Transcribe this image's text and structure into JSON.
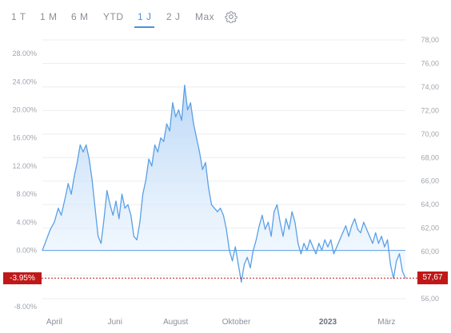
{
  "tabs": [
    {
      "label": "1 T",
      "active": false
    },
    {
      "label": "1 M",
      "active": false
    },
    {
      "label": "6 M",
      "active": false
    },
    {
      "label": "YTD",
      "active": false
    },
    {
      "label": "1 J",
      "active": true
    },
    {
      "label": "2 J",
      "active": false
    },
    {
      "label": "Max",
      "active": false
    }
  ],
  "settings_icon": "gear-icon",
  "colors": {
    "accent": "#4a90d9",
    "line": "#5aa0e6",
    "fill_top": "#b7d6f7",
    "fill_bottom": "#f2f8fe",
    "current_marker": "#c01818",
    "grid": "#eceef1"
  },
  "chart_data": {
    "type": "area",
    "left_axis": {
      "unit": "percent",
      "range": [
        -8,
        28
      ],
      "ticks": [
        "28.00%",
        "24.00%",
        "20.00%",
        "16.00%",
        "12.00%",
        "8.00%",
        "4.00%",
        "0.00%",
        "-8.00%"
      ]
    },
    "right_axis": {
      "range": [
        56,
        78
      ],
      "ticks": [
        "78,00",
        "76,00",
        "74,00",
        "72,00",
        "70,00",
        "68,00",
        "66,00",
        "64,00",
        "62,00",
        "60,00",
        "58,00",
        "56,00"
      ]
    },
    "x_axis": {
      "range": [
        "2022-03-20",
        "2023-03-20"
      ],
      "labels": [
        {
          "date": "2022-04-01",
          "text": "April",
          "bold": false
        },
        {
          "date": "2022-06-01",
          "text": "Juni",
          "bold": false
        },
        {
          "date": "2022-08-01",
          "text": "August",
          "bold": false
        },
        {
          "date": "2022-10-01",
          "text": "Oktober",
          "bold": false
        },
        {
          "date": "2023-01-01",
          "text": "2023",
          "bold": true
        },
        {
          "date": "2023-03-01",
          "text": "März",
          "bold": false
        }
      ]
    },
    "current": {
      "percent_label": "-3.95%",
      "price_label": "57,67",
      "percent": -3.95
    },
    "grid": "horizontal",
    "series": [
      {
        "values": [
          {
            "x": "2022-03-20",
            "y": 0.0
          },
          {
            "x": "2022-03-24",
            "y": 1.5
          },
          {
            "x": "2022-03-28",
            "y": 3.0
          },
          {
            "x": "2022-04-01",
            "y": 4.0
          },
          {
            "x": "2022-04-05",
            "y": 6.0
          },
          {
            "x": "2022-04-08",
            "y": 5.0
          },
          {
            "x": "2022-04-12",
            "y": 7.5
          },
          {
            "x": "2022-04-15",
            "y": 9.5
          },
          {
            "x": "2022-04-18",
            "y": 8.0
          },
          {
            "x": "2022-04-21",
            "y": 10.5
          },
          {
            "x": "2022-04-24",
            "y": 12.5
          },
          {
            "x": "2022-04-27",
            "y": 15.0
          },
          {
            "x": "2022-04-30",
            "y": 14.0
          },
          {
            "x": "2022-05-03",
            "y": 15.0
          },
          {
            "x": "2022-05-06",
            "y": 13.0
          },
          {
            "x": "2022-05-09",
            "y": 10.0
          },
          {
            "x": "2022-05-12",
            "y": 6.0
          },
          {
            "x": "2022-05-15",
            "y": 2.0
          },
          {
            "x": "2022-05-18",
            "y": 1.0
          },
          {
            "x": "2022-05-21",
            "y": 4.5
          },
          {
            "x": "2022-05-24",
            "y": 8.5
          },
          {
            "x": "2022-05-27",
            "y": 6.5
          },
          {
            "x": "2022-05-30",
            "y": 5.0
          },
          {
            "x": "2022-06-02",
            "y": 7.0
          },
          {
            "x": "2022-06-05",
            "y": 4.5
          },
          {
            "x": "2022-06-08",
            "y": 8.0
          },
          {
            "x": "2022-06-11",
            "y": 6.0
          },
          {
            "x": "2022-06-14",
            "y": 6.5
          },
          {
            "x": "2022-06-17",
            "y": 5.0
          },
          {
            "x": "2022-06-20",
            "y": 2.0
          },
          {
            "x": "2022-06-23",
            "y": 1.5
          },
          {
            "x": "2022-06-26",
            "y": 4.0
          },
          {
            "x": "2022-06-29",
            "y": 8.0
          },
          {
            "x": "2022-07-02",
            "y": 10.0
          },
          {
            "x": "2022-07-05",
            "y": 13.0
          },
          {
            "x": "2022-07-08",
            "y": 12.0
          },
          {
            "x": "2022-07-11",
            "y": 15.0
          },
          {
            "x": "2022-07-14",
            "y": 14.0
          },
          {
            "x": "2022-07-17",
            "y": 16.0
          },
          {
            "x": "2022-07-20",
            "y": 15.5
          },
          {
            "x": "2022-07-23",
            "y": 18.0
          },
          {
            "x": "2022-07-26",
            "y": 17.0
          },
          {
            "x": "2022-07-29",
            "y": 21.0
          },
          {
            "x": "2022-08-01",
            "y": 19.0
          },
          {
            "x": "2022-08-04",
            "y": 20.0
          },
          {
            "x": "2022-08-07",
            "y": 18.5
          },
          {
            "x": "2022-08-10",
            "y": 23.5
          },
          {
            "x": "2022-08-13",
            "y": 20.0
          },
          {
            "x": "2022-08-16",
            "y": 21.0
          },
          {
            "x": "2022-08-19",
            "y": 18.0
          },
          {
            "x": "2022-08-22",
            "y": 16.0
          },
          {
            "x": "2022-08-25",
            "y": 14.0
          },
          {
            "x": "2022-08-28",
            "y": 11.5
          },
          {
            "x": "2022-08-31",
            "y": 12.5
          },
          {
            "x": "2022-09-03",
            "y": 9.0
          },
          {
            "x": "2022-09-06",
            "y": 6.5
          },
          {
            "x": "2022-09-09",
            "y": 6.0
          },
          {
            "x": "2022-09-12",
            "y": 5.5
          },
          {
            "x": "2022-09-15",
            "y": 6.0
          },
          {
            "x": "2022-09-18",
            "y": 5.0
          },
          {
            "x": "2022-09-21",
            "y": 3.0
          },
          {
            "x": "2022-09-24",
            "y": 0.0
          },
          {
            "x": "2022-09-27",
            "y": -1.5
          },
          {
            "x": "2022-09-30",
            "y": 0.5
          },
          {
            "x": "2022-10-03",
            "y": -2.0
          },
          {
            "x": "2022-10-06",
            "y": -4.5
          },
          {
            "x": "2022-10-09",
            "y": -2.0
          },
          {
            "x": "2022-10-12",
            "y": -1.0
          },
          {
            "x": "2022-10-15",
            "y": -2.5
          },
          {
            "x": "2022-10-18",
            "y": 0.0
          },
          {
            "x": "2022-10-21",
            "y": 1.5
          },
          {
            "x": "2022-10-24",
            "y": 3.5
          },
          {
            "x": "2022-10-27",
            "y": 5.0
          },
          {
            "x": "2022-10-30",
            "y": 3.0
          },
          {
            "x": "2022-11-02",
            "y": 4.0
          },
          {
            "x": "2022-11-05",
            "y": 2.0
          },
          {
            "x": "2022-11-08",
            "y": 5.5
          },
          {
            "x": "2022-11-11",
            "y": 6.5
          },
          {
            "x": "2022-11-14",
            "y": 4.0
          },
          {
            "x": "2022-11-17",
            "y": 2.0
          },
          {
            "x": "2022-11-20",
            "y": 4.5
          },
          {
            "x": "2022-11-23",
            "y": 3.0
          },
          {
            "x": "2022-11-26",
            "y": 5.5
          },
          {
            "x": "2022-11-29",
            "y": 4.0
          },
          {
            "x": "2022-12-02",
            "y": 1.0
          },
          {
            "x": "2022-12-05",
            "y": -0.5
          },
          {
            "x": "2022-12-08",
            "y": 1.0
          },
          {
            "x": "2022-12-11",
            "y": 0.0
          },
          {
            "x": "2022-12-14",
            "y": 1.5
          },
          {
            "x": "2022-12-17",
            "y": 0.5
          },
          {
            "x": "2022-12-20",
            "y": -0.5
          },
          {
            "x": "2022-12-23",
            "y": 1.0
          },
          {
            "x": "2022-12-26",
            "y": 0.0
          },
          {
            "x": "2022-12-29",
            "y": 1.5
          },
          {
            "x": "2023-01-01",
            "y": 0.5
          },
          {
            "x": "2023-01-04",
            "y": 1.5
          },
          {
            "x": "2023-01-07",
            "y": -0.5
          },
          {
            "x": "2023-01-10",
            "y": 0.5
          },
          {
            "x": "2023-01-13",
            "y": 1.5
          },
          {
            "x": "2023-01-16",
            "y": 2.5
          },
          {
            "x": "2023-01-19",
            "y": 3.5
          },
          {
            "x": "2023-01-22",
            "y": 2.0
          },
          {
            "x": "2023-01-25",
            "y": 3.5
          },
          {
            "x": "2023-01-28",
            "y": 4.5
          },
          {
            "x": "2023-01-31",
            "y": 3.0
          },
          {
            "x": "2023-02-03",
            "y": 2.5
          },
          {
            "x": "2023-02-06",
            "y": 4.0
          },
          {
            "x": "2023-02-09",
            "y": 3.0
          },
          {
            "x": "2023-02-12",
            "y": 2.0
          },
          {
            "x": "2023-02-15",
            "y": 1.0
          },
          {
            "x": "2023-02-18",
            "y": 2.5
          },
          {
            "x": "2023-02-21",
            "y": 1.0
          },
          {
            "x": "2023-02-24",
            "y": 2.0
          },
          {
            "x": "2023-02-27",
            "y": 0.5
          },
          {
            "x": "2023-03-02",
            "y": 1.5
          },
          {
            "x": "2023-03-05",
            "y": -2.0
          },
          {
            "x": "2023-03-08",
            "y": -4.0
          },
          {
            "x": "2023-03-11",
            "y": -1.5
          },
          {
            "x": "2023-03-14",
            "y": -0.5
          },
          {
            "x": "2023-03-17",
            "y": -3.0
          },
          {
            "x": "2023-03-20",
            "y": -3.95
          }
        ]
      }
    ]
  }
}
